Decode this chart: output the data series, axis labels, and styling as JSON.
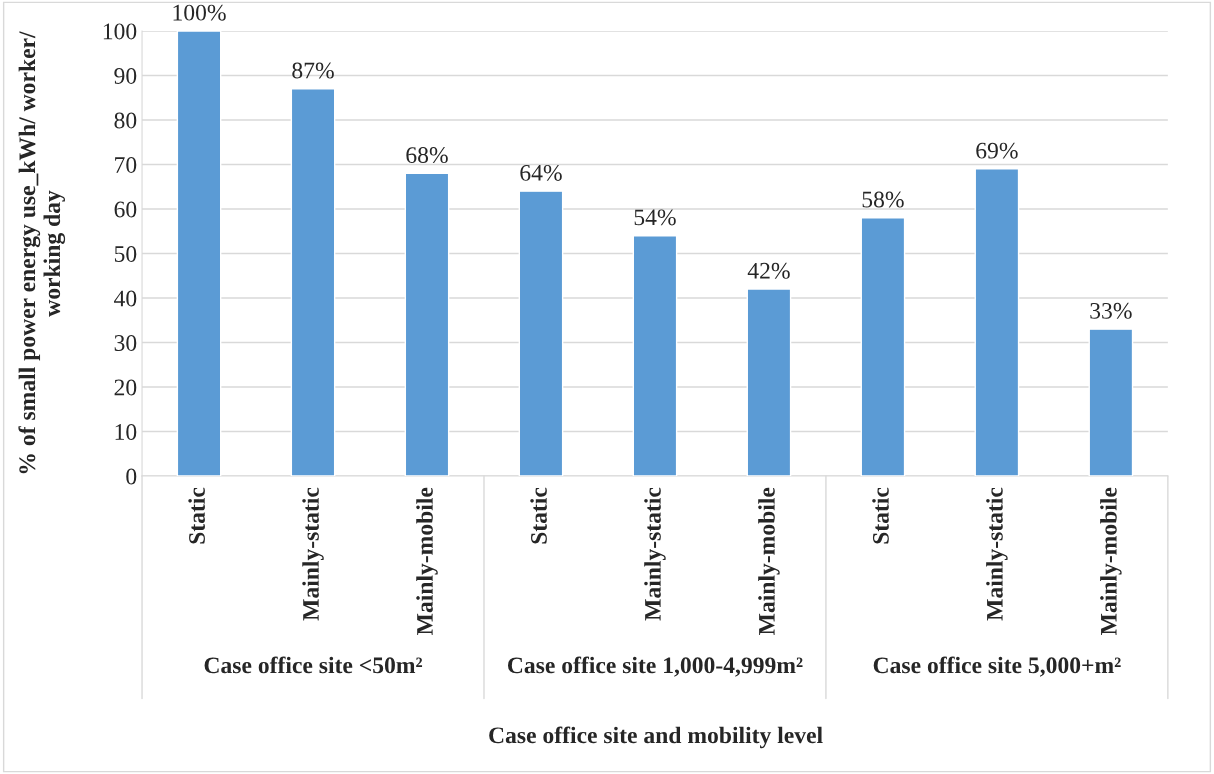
{
  "chart_data": {
    "type": "bar",
    "xlabel": "Case office site and mobility level",
    "ylabel": "% of small power energy use_kWh/ worker/ working day",
    "categories": [
      "Static",
      "Mainly-static",
      "Mainly-mobile",
      "Static",
      "Mainly-static",
      "Mainly-mobile",
      "Static",
      "Mainly-static",
      "Mainly-mobile"
    ],
    "values": [
      100,
      87,
      68,
      64,
      54,
      42,
      58,
      69,
      33
    ],
    "value_labels": [
      "100%",
      "87%",
      "68%",
      "64%",
      "54%",
      "42%",
      "58%",
      "69%",
      "33%"
    ],
    "color": "#5b9bd5",
    "annotations": [
      "Case office site <50m²",
      "Case office site 1,000-4,999m²",
      "Case office site 5,000+m²"
    ],
    "ylim": [
      0,
      100
    ],
    "yticks": [
      0,
      10,
      20,
      30,
      40,
      50,
      60,
      70,
      80,
      90,
      100
    ],
    "grid": "y",
    "legend": false
  }
}
